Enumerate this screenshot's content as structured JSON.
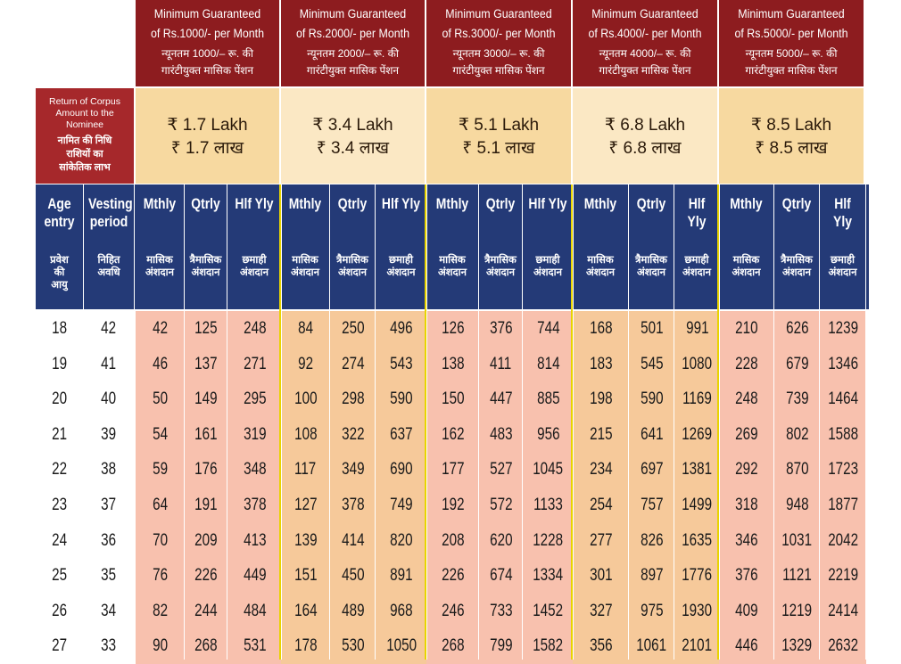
{
  "pension_headers": [
    {
      "en1": "Minimum Guaranteed",
      "en2": "of Rs.1000/- per Month",
      "hi1": "न्यूनतम 1000/– रू. की",
      "hi2": "गारंटीयुक्त मासिक पेंशन"
    },
    {
      "en1": "Minimum Guaranteed",
      "en2": "of Rs.2000/- per Month",
      "hi1": "न्यूनतम 2000/– रू. की",
      "hi2": "गारंटीयुक्त मासिक पेंशन"
    },
    {
      "en1": "Minimum Guaranteed",
      "en2": "of Rs.3000/- per Month",
      "hi1": "न्यूनतम 3000/– रू. की",
      "hi2": "गारंटीयुक्त मासिक पेंशन"
    },
    {
      "en1": "Minimum Guaranteed",
      "en2": "of Rs.4000/- per Month",
      "hi1": "न्यूनतम 4000/– रू. की",
      "hi2": "गारंटीयुक्त मासिक पेंशन"
    },
    {
      "en1": "Minimum Guaranteed",
      "en2": "of Rs.5000/- per Month",
      "hi1": "न्यूनतम 5000/– रू. की",
      "hi2": "गारंटीयुक्त मासिक पेंशन"
    }
  ],
  "return_label": {
    "en1": "Return of Corpus",
    "en2": "Amount  to the Nominee",
    "hi1": "नामित की निधि",
    "hi2": "राशियों का",
    "hi3": "सांकेतिक लाभ"
  },
  "corpus": [
    {
      "en": "₹ 1.7 Lakh",
      "hi": "₹ 1.7 लाख"
    },
    {
      "en": "₹ 3.4 Lakh",
      "hi": "₹ 3.4 लाख"
    },
    {
      "en": "₹ 5.1 Lakh",
      "hi": "₹ 5.1 लाख"
    },
    {
      "en": "₹ 6.8 Lakh",
      "hi": "₹ 6.8 लाख"
    },
    {
      "en": "₹ 8.5 Lakh",
      "hi": "₹ 8.5 लाख"
    }
  ],
  "col_headers": {
    "age": {
      "en1": "Age",
      "en2": "entry",
      "hi1": "प्रवेश",
      "hi2": "की",
      "hi3": "आयु"
    },
    "vesting": {
      "en1": "Vesting",
      "en2": "period",
      "hi1": "निहित",
      "hi2": "अवधि"
    },
    "mthly": {
      "en": "Mthly",
      "hi1": "मासिक",
      "hi2": "अंशदान"
    },
    "qtrly": {
      "en": "Qtrly",
      "hi1": "त्रैमासिक",
      "hi2": "अंशदान"
    },
    "hlf": {
      "en": "Hlf Yly",
      "hi1": "छमाही",
      "hi2": "अंशदान"
    }
  },
  "rows": [
    {
      "age": "18",
      "vest": "42",
      "v": [
        "42",
        "125",
        "248",
        "84",
        "250",
        "496",
        "126",
        "376",
        "744",
        "168",
        "501",
        "991",
        "210",
        "626",
        "1239"
      ]
    },
    {
      "age": "19",
      "vest": "41",
      "v": [
        "46",
        "137",
        "271",
        "92",
        "274",
        "543",
        "138",
        "411",
        "814",
        "183",
        "545",
        "1080",
        "228",
        "679",
        "1346"
      ]
    },
    {
      "age": "20",
      "vest": "40",
      "v": [
        "50",
        "149",
        "295",
        "100",
        "298",
        "590",
        "150",
        "447",
        "885",
        "198",
        "590",
        "1169",
        "248",
        "739",
        "1464"
      ]
    },
    {
      "age": "21",
      "vest": "39",
      "v": [
        "54",
        "161",
        "319",
        "108",
        "322",
        "637",
        "162",
        "483",
        "956",
        "215",
        "641",
        "1269",
        "269",
        "802",
        "1588"
      ]
    },
    {
      "age": "22",
      "vest": "38",
      "v": [
        "59",
        "176",
        "348",
        "117",
        "349",
        "690",
        "177",
        "527",
        "1045",
        "234",
        "697",
        "1381",
        "292",
        "870",
        "1723"
      ]
    },
    {
      "age": "23",
      "vest": "37",
      "v": [
        "64",
        "191",
        "378",
        "127",
        "378",
        "749",
        "192",
        "572",
        "1133",
        "254",
        "757",
        "1499",
        "318",
        "948",
        "1877"
      ]
    },
    {
      "age": "24",
      "vest": "36",
      "v": [
        "70",
        "209",
        "413",
        "139",
        "414",
        "820",
        "208",
        "620",
        "1228",
        "277",
        "826",
        "1635",
        "346",
        "1031",
        "2042"
      ]
    },
    {
      "age": "25",
      "vest": "35",
      "v": [
        "76",
        "226",
        "449",
        "151",
        "450",
        "891",
        "226",
        "674",
        "1334",
        "301",
        "897",
        "1776",
        "376",
        "1121",
        "2219"
      ]
    },
    {
      "age": "26",
      "vest": "34",
      "v": [
        "82",
        "244",
        "484",
        "164",
        "489",
        "968",
        "246",
        "733",
        "1452",
        "327",
        "975",
        "1930",
        "409",
        "1219",
        "2414"
      ]
    },
    {
      "age": "27",
      "vest": "33",
      "v": [
        "90",
        "268",
        "531",
        "178",
        "530",
        "1050",
        "268",
        "799",
        "1582",
        "356",
        "1061",
        "2101",
        "446",
        "1329",
        "2632"
      ]
    }
  ],
  "colors": {
    "header_red": "#8d1c1f",
    "header_blue": "#243a77",
    "corpus_light": "#fbe8c4",
    "corpus_mid": "#f7d9a0",
    "cell_pink": "#f8c1ae",
    "cell_orange": "#f6c99a",
    "divider_yellow": "#e8d400"
  }
}
